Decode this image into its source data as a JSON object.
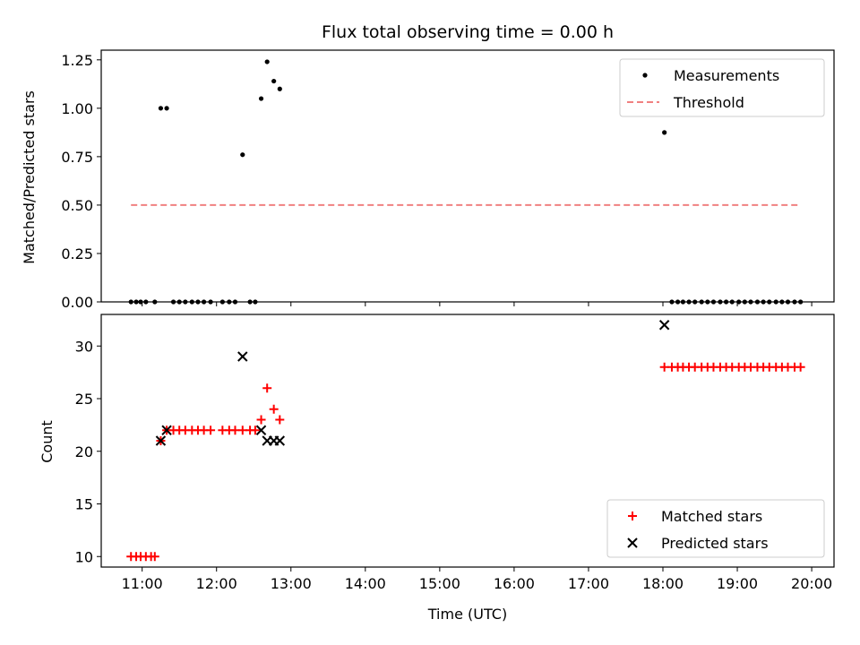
{
  "chart_data": [
    {
      "type": "scatter",
      "title": "Flux total observing time = 0.00 h",
      "xlabel": "",
      "ylabel": "Matched/Predicted stars",
      "xlim": [
        10.45,
        20.3
      ],
      "ylim": [
        0,
        1.3
      ],
      "yticks": [
        0,
        0.25,
        0.5,
        0.75,
        1.0,
        1.25
      ],
      "ytick_labels": [
        "0.00",
        "0.25",
        "0.50",
        "0.75",
        "1.00",
        "1.25"
      ],
      "legend_position": "top-right",
      "series": [
        {
          "name": "Measurements",
          "marker": "dot",
          "color": "#000000",
          "points": [
            [
              10.85,
              0
            ],
            [
              10.92,
              0
            ],
            [
              10.98,
              0
            ],
            [
              11.05,
              0
            ],
            [
              11.17,
              0
            ],
            [
              11.25,
              1.0
            ],
            [
              11.33,
              1.0
            ],
            [
              11.42,
              0
            ],
            [
              11.5,
              0
            ],
            [
              11.58,
              0
            ],
            [
              11.67,
              0
            ],
            [
              11.75,
              0
            ],
            [
              11.83,
              0
            ],
            [
              11.92,
              0
            ],
            [
              12.08,
              0
            ],
            [
              12.17,
              0
            ],
            [
              12.25,
              0
            ],
            [
              12.35,
              0.76
            ],
            [
              12.45,
              0
            ],
            [
              12.52,
              0
            ],
            [
              12.6,
              1.05
            ],
            [
              12.68,
              1.24
            ],
            [
              12.77,
              1.14
            ],
            [
              12.85,
              1.1
            ],
            [
              18.02,
              0.875
            ],
            [
              18.12,
              0
            ],
            [
              18.2,
              0
            ],
            [
              18.27,
              0
            ],
            [
              18.35,
              0
            ],
            [
              18.43,
              0
            ],
            [
              18.52,
              0
            ],
            [
              18.6,
              0
            ],
            [
              18.68,
              0
            ],
            [
              18.77,
              0
            ],
            [
              18.85,
              0
            ],
            [
              18.93,
              0
            ],
            [
              19.02,
              0
            ],
            [
              19.1,
              0
            ],
            [
              19.18,
              0
            ],
            [
              19.27,
              0
            ],
            [
              19.35,
              0
            ],
            [
              19.43,
              0
            ],
            [
              19.52,
              0
            ],
            [
              19.6,
              0
            ],
            [
              19.68,
              0
            ],
            [
              19.77,
              0
            ],
            [
              19.85,
              0
            ]
          ]
        },
        {
          "name": "Threshold",
          "style": "dashed-line",
          "color": "#f08080",
          "points": [
            [
              10.85,
              0.5
            ],
            [
              19.85,
              0.5
            ]
          ]
        }
      ]
    },
    {
      "type": "scatter",
      "title": "",
      "xlabel": "Time (UTC)",
      "ylabel": "Count",
      "xlim": [
        10.45,
        20.3
      ],
      "ylim": [
        9,
        33
      ],
      "yticks": [
        10,
        15,
        20,
        25,
        30
      ],
      "ytick_labels": [
        "10",
        "15",
        "20",
        "25",
        "30"
      ],
      "xticks": [
        11,
        12,
        13,
        14,
        15,
        16,
        17,
        18,
        19,
        20
      ],
      "xtick_labels": [
        "11:00",
        "12:00",
        "13:00",
        "14:00",
        "15:00",
        "16:00",
        "17:00",
        "18:00",
        "19:00",
        "20:00"
      ],
      "legend_position": "bottom-right",
      "series": [
        {
          "name": "Matched stars",
          "marker": "plus",
          "color": "#ff0000",
          "points": [
            [
              10.85,
              10
            ],
            [
              10.92,
              10
            ],
            [
              10.98,
              10
            ],
            [
              11.05,
              10
            ],
            [
              11.12,
              10
            ],
            [
              11.17,
              10
            ],
            [
              11.25,
              21
            ],
            [
              11.33,
              22
            ],
            [
              11.42,
              22
            ],
            [
              11.5,
              22
            ],
            [
              11.58,
              22
            ],
            [
              11.67,
              22
            ],
            [
              11.75,
              22
            ],
            [
              11.83,
              22
            ],
            [
              11.92,
              22
            ],
            [
              12.08,
              22
            ],
            [
              12.17,
              22
            ],
            [
              12.25,
              22
            ],
            [
              12.35,
              22
            ],
            [
              12.45,
              22
            ],
            [
              12.52,
              22
            ],
            [
              12.6,
              23
            ],
            [
              12.68,
              26
            ],
            [
              12.77,
              24
            ],
            [
              12.85,
              23
            ],
            [
              18.02,
              28
            ],
            [
              18.12,
              28
            ],
            [
              18.2,
              28
            ],
            [
              18.27,
              28
            ],
            [
              18.35,
              28
            ],
            [
              18.43,
              28
            ],
            [
              18.52,
              28
            ],
            [
              18.6,
              28
            ],
            [
              18.68,
              28
            ],
            [
              18.77,
              28
            ],
            [
              18.85,
              28
            ],
            [
              18.93,
              28
            ],
            [
              19.02,
              28
            ],
            [
              19.1,
              28
            ],
            [
              19.18,
              28
            ],
            [
              19.27,
              28
            ],
            [
              19.35,
              28
            ],
            [
              19.43,
              28
            ],
            [
              19.52,
              28
            ],
            [
              19.6,
              28
            ],
            [
              19.68,
              28
            ],
            [
              19.77,
              28
            ],
            [
              19.85,
              28
            ]
          ]
        },
        {
          "name": "Predicted stars",
          "marker": "x",
          "color": "#000000",
          "points": [
            [
              11.25,
              21
            ],
            [
              11.33,
              22
            ],
            [
              12.35,
              29
            ],
            [
              12.6,
              22
            ],
            [
              12.68,
              21
            ],
            [
              12.77,
              21
            ],
            [
              12.85,
              21
            ],
            [
              18.02,
              32
            ]
          ]
        }
      ]
    }
  ]
}
